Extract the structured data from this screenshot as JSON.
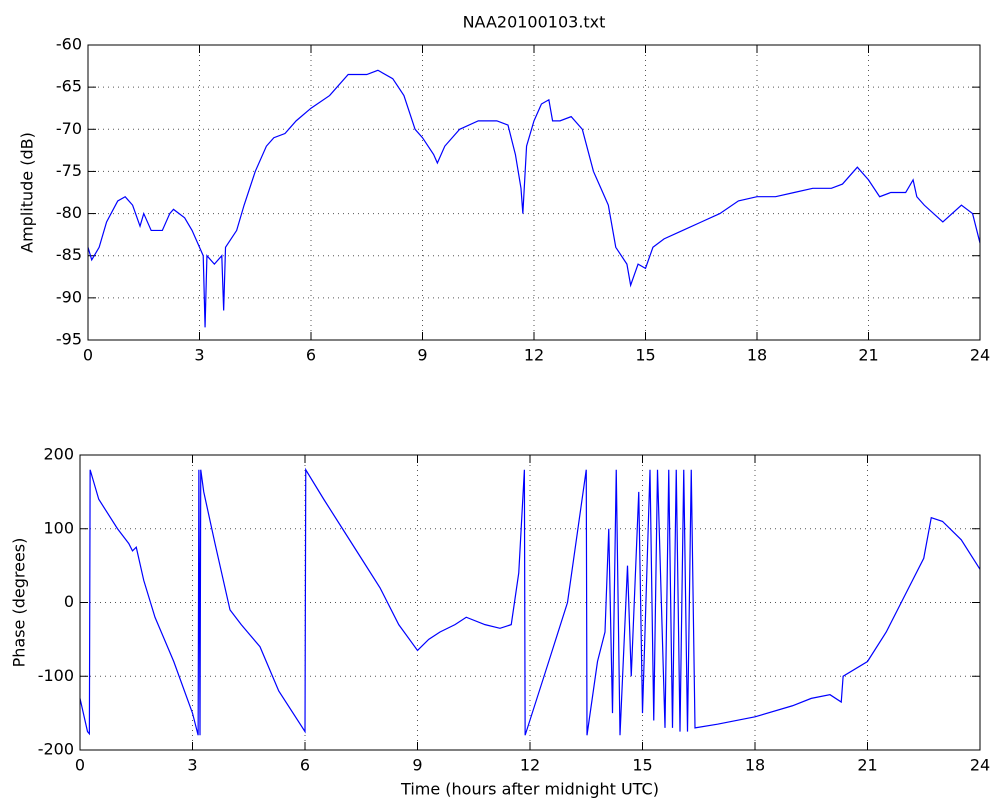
{
  "chart_data": [
    {
      "type": "line",
      "title": "NAA20100103.txt",
      "y_label": "Amplitude (dB)",
      "color": "#0000ff",
      "grid": true,
      "xlim": [
        0,
        24
      ],
      "xticks": [
        0,
        3,
        6,
        9,
        12,
        15,
        18,
        21,
        24
      ],
      "ylim": [
        -95,
        -60
      ],
      "yticks": [
        -95,
        -90,
        -85,
        -80,
        -75,
        -70,
        -65,
        -60
      ],
      "x": [
        0,
        0.1,
        0.3,
        0.5,
        0.8,
        1,
        1.2,
        1.4,
        1.5,
        1.7,
        2,
        2.2,
        2.3,
        2.6,
        2.8,
        3,
        3.1,
        3.15,
        3.2,
        3.4,
        3.6,
        3.65,
        3.7,
        4,
        4.2,
        4.5,
        4.8,
        5,
        5.3,
        5.6,
        6,
        6.5,
        7,
        7.5,
        7.8,
        8.2,
        8.5,
        8.8,
        9,
        9.3,
        9.4,
        9.6,
        10,
        10.5,
        11,
        11.3,
        11.5,
        11.65,
        11.7,
        11.8,
        12,
        12.2,
        12.4,
        12.5,
        12.7,
        13,
        13.3,
        13.6,
        13.8,
        14,
        14.2,
        14.5,
        14.6,
        14.8,
        15,
        15.2,
        15.5,
        16,
        16.5,
        17,
        17.5,
        18,
        18.5,
        19,
        19.5,
        20,
        20.3,
        20.7,
        21,
        21.3,
        21.6,
        22,
        22.2,
        22.3,
        22.5,
        23,
        23.5,
        23.8,
        24
      ],
      "values": [
        -84,
        -85.5,
        -84,
        -81,
        -78.5,
        -78,
        -79,
        -81.5,
        -80,
        -82,
        -82,
        -80,
        -79.5,
        -80.5,
        -82,
        -84,
        -85,
        -93.5,
        -85,
        -86,
        -85,
        -91.5,
        -84,
        -82,
        -79,
        -75,
        -72,
        -71,
        -70.5,
        -69,
        -67.5,
        -66,
        -63.5,
        -63.5,
        -63,
        -64,
        -66,
        -70,
        -71,
        -73,
        -74,
        -72,
        -70,
        -69,
        -69,
        -69.5,
        -73,
        -77,
        -80,
        -72,
        -69,
        -67,
        -66.5,
        -69,
        -69,
        -68.5,
        -70,
        -75,
        -77,
        -79,
        -84,
        -86,
        -88.5,
        -86,
        -86.5,
        -84,
        -83,
        -82,
        -81,
        -80,
        -78.5,
        -78,
        -78,
        -77.5,
        -77,
        -77,
        -76.5,
        -74.5,
        -76,
        -78,
        -77.5,
        -77.5,
        -76,
        -78,
        -79,
        -81,
        -79,
        -80,
        -83.5
      ]
    },
    {
      "type": "line",
      "x_label": "Time (hours after midnight UTC)",
      "y_label": "Phase (degrees)",
      "color": "#0000ff",
      "grid": true,
      "xlim": [
        0,
        24
      ],
      "xticks": [
        0,
        3,
        6,
        9,
        12,
        15,
        18,
        21,
        24
      ],
      "ylim": [
        -200,
        200
      ],
      "yticks": [
        -200,
        -100,
        0,
        100,
        200
      ],
      "x": [
        0,
        0.2,
        0.25,
        0.27,
        0.5,
        1,
        1.3,
        1.4,
        1.5,
        1.7,
        2,
        2.5,
        3,
        3.15,
        3.17,
        3.2,
        3.22,
        3.3,
        3.6,
        4,
        4.3,
        4.8,
        5.3,
        6,
        6.02,
        6.5,
        7,
        7.5,
        8,
        8.5,
        9,
        9.3,
        9.6,
        10,
        10.3,
        10.8,
        11.2,
        11.5,
        11.7,
        11.85,
        11.87,
        12.5,
        13,
        13.5,
        13.52,
        13.8,
        14,
        14.1,
        14.2,
        14.3,
        14.4,
        14.6,
        14.7,
        14.9,
        15,
        15.2,
        15.3,
        15.4,
        15.6,
        15.7,
        15.8,
        15.9,
        16,
        16.1,
        16.2,
        16.3,
        16.4,
        17,
        18,
        19,
        19.5,
        20,
        20.3,
        20.35,
        21,
        21.5,
        22,
        22.5,
        22.7,
        23,
        23.5,
        24
      ],
      "values": [
        -130,
        -175,
        -178,
        180,
        140,
        100,
        80,
        70,
        75,
        30,
        -20,
        -80,
        -150,
        -180,
        180,
        -180,
        180,
        150,
        80,
        -10,
        -30,
        -60,
        -120,
        -175,
        180,
        140,
        100,
        60,
        20,
        -30,
        -65,
        -50,
        -40,
        -30,
        -20,
        -30,
        -35,
        -30,
        40,
        180,
        -180,
        -80,
        0,
        180,
        -180,
        -80,
        -40,
        100,
        -150,
        180,
        -180,
        50,
        -100,
        150,
        -150,
        180,
        -160,
        180,
        -170,
        180,
        -170,
        180,
        -175,
        180,
        -175,
        180,
        -170,
        -165,
        -155,
        -140,
        -130,
        -125,
        -135,
        -100,
        -80,
        -40,
        10,
        60,
        115,
        110,
        85,
        45
      ]
    }
  ]
}
